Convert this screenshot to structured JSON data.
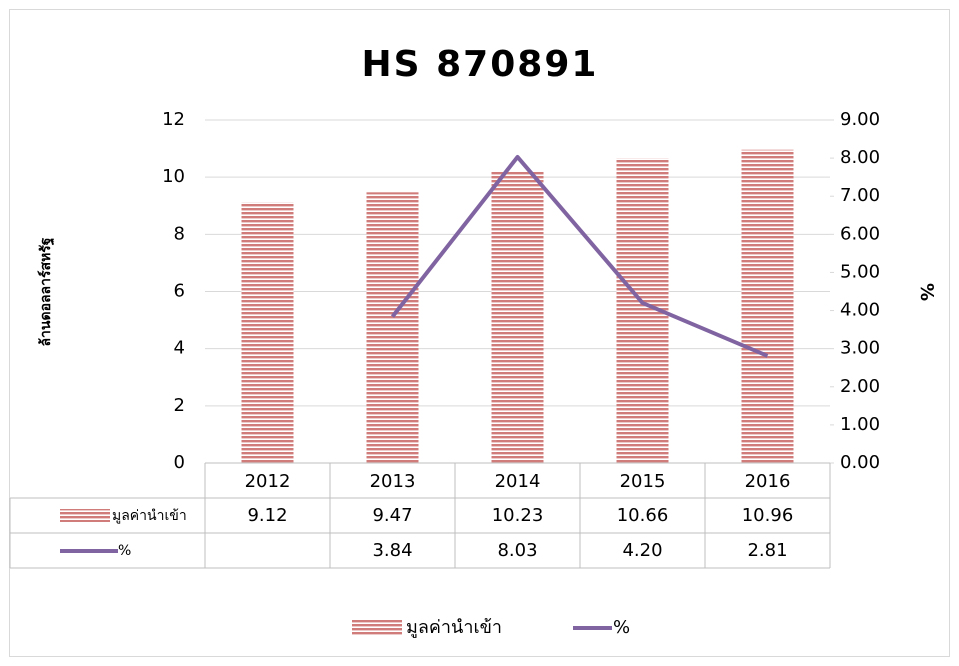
{
  "chart_data": {
    "type": "bar-line",
    "title": "HS 870891",
    "y_label": "ล้านดอลลาร์สหรัฐ",
    "y2_label": "%",
    "categories": [
      "2012",
      "2013",
      "2014",
      "2015",
      "2016"
    ],
    "series": [
      {
        "name": "มูลค่านำเข้า",
        "type": "bar",
        "color": "#c0504d",
        "values": [
          9.12,
          9.47,
          10.23,
          10.66,
          10.96
        ]
      },
      {
        "name": "%",
        "type": "line",
        "axis": "y2",
        "color": "#8064a2",
        "values": [
          null,
          3.84,
          8.03,
          4.2,
          2.81
        ],
        "value_labels": [
          null,
          "3.84",
          "8.03",
          "4.20",
          "2.81"
        ]
      }
    ],
    "ylim": [
      0,
      12
    ],
    "yticks": [
      0,
      2,
      4,
      6,
      8,
      10,
      12
    ],
    "y2lim": [
      0,
      9
    ],
    "y2ticks": [
      {
        "value": 0,
        "label": "0.00"
      },
      {
        "value": 1,
        "label": "1.00"
      },
      {
        "value": 2,
        "label": "2.00"
      },
      {
        "value": 3,
        "label": "3.00"
      },
      {
        "value": 4,
        "label": "4.00"
      },
      {
        "value": 5,
        "label": "5.00"
      },
      {
        "value": 6,
        "label": "6.00"
      },
      {
        "value": 7,
        "label": "7.00"
      },
      {
        "value": 8,
        "label": "8.00"
      },
      {
        "value": 9,
        "label": "9.00"
      }
    ],
    "grid": true,
    "legend": "bottom"
  }
}
